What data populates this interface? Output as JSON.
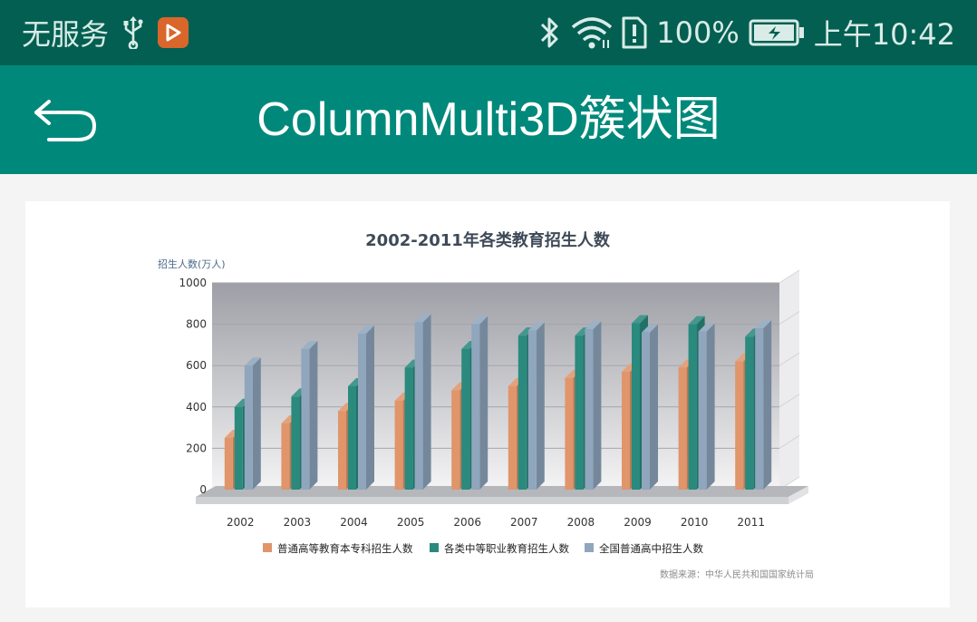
{
  "status_bar": {
    "carrier": "无服务",
    "battery_percent": "100%",
    "time": "上午10:42",
    "icons": [
      "usb-icon",
      "app-notification-icon",
      "bluetooth-icon",
      "wifi-icon",
      "sim-alert-icon",
      "battery-charging-icon"
    ]
  },
  "app_bar": {
    "title": "ColumnMulti3D簇状图",
    "back_icon": "back-arrow-icon",
    "color": "#00897b"
  },
  "chart_data": {
    "type": "bar",
    "title": "2002-2011年各类教育招生人数",
    "ylabel": "招生人数(万人)",
    "xlabel": "",
    "ylim": [
      0,
      1000
    ],
    "yticks": [
      0,
      200,
      400,
      600,
      800,
      1000
    ],
    "grid": true,
    "legend_position": "bottom",
    "categories": [
      "2002",
      "2003",
      "2004",
      "2005",
      "2006",
      "2007",
      "2008",
      "2009",
      "2010",
      "2011"
    ],
    "series": [
      {
        "name": "普通高等教育本专科招生人数",
        "color": "#e0956a",
        "values": [
          250,
          320,
          380,
          430,
          480,
          500,
          540,
          570,
          590,
          620
        ]
      },
      {
        "name": "各类中等职业教育招生人数",
        "color": "#2a8a7d",
        "values": [
          400,
          450,
          500,
          590,
          680,
          745,
          745,
          805,
          800,
          740
        ]
      },
      {
        "name": "全国普通高中招生人数",
        "color": "#8fa6bd",
        "values": [
          600,
          680,
          755,
          810,
          800,
          770,
          775,
          760,
          765,
          780
        ]
      }
    ],
    "source_note": "数据来源：中华人民共和国国家统计局"
  }
}
